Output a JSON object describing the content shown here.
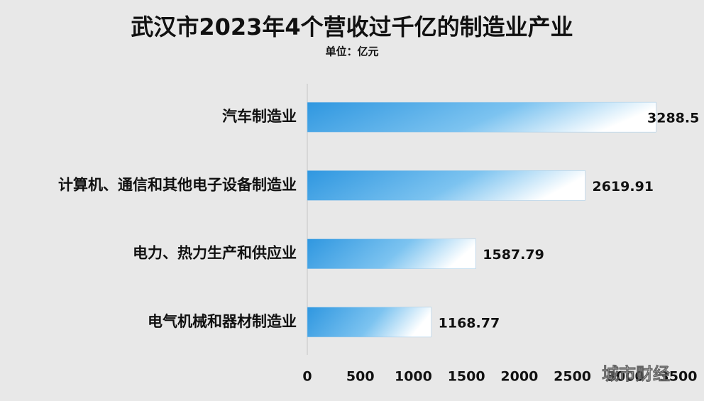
{
  "chart_data": {
    "type": "barh",
    "title": "武汉市2023年4个营收过千亿的制造业产业",
    "subtitle": "单位：亿元",
    "categories": [
      "汽车制造业",
      "计算机、通信和其他电子设备制造业",
      "电力、热力生产和供应业",
      "电气机械和器材制造业"
    ],
    "values": [
      3288.5,
      2619.91,
      1587.79,
      1168.77
    ],
    "color": "#3a9fe3",
    "xlim": [
      0,
      3500
    ],
    "xticks": [
      0,
      500,
      1000,
      1500,
      2000,
      2500,
      3000,
      3500
    ],
    "grid": false,
    "watermark": "城市财经"
  }
}
